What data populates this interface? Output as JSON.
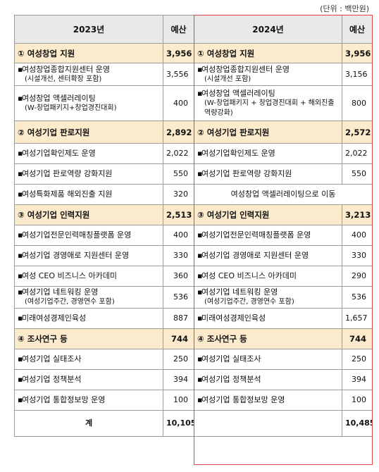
{
  "unit_label": "(단위 : 백만원)",
  "header": {
    "y2023": "2023년",
    "budget": "예산",
    "y2024": "2024년",
    "budget2": "예산"
  },
  "rows": [
    {
      "type": "sec",
      "l": "① 여성창업 지원",
      "lv": "3,956",
      "r": "① 여성창업 지원",
      "rv": "3,956"
    },
    {
      "type": "item",
      "l": "여성창업종합지원센터 운영",
      "ls": "(시설개선, 센터확장 포함)",
      "lv": "3,556",
      "r": "여성창업종합지원센터 운영",
      "rs": "(시설개선 포함)",
      "rv": "3,156"
    },
    {
      "type": "item",
      "l": "여성창업 액셀러레이팅",
      "ls": "(W-창업패키지+창업경진대회)",
      "lv": "400",
      "r": "여성창업 액셀러레이팅",
      "rs": "(W-창업패키지 + 창업경진대회 + 해외진출 역량강화)",
      "rv": "800"
    },
    {
      "type": "sec",
      "l": "② 여성기업 판로지원",
      "lv": "2,892",
      "r": "② 여성기업 판로지원",
      "rv": "2,572"
    },
    {
      "type": "item",
      "l": "여성기업확인제도 운영",
      "lv": "2,022",
      "r": "여성기업확인제도 운영",
      "rv": "2,022"
    },
    {
      "type": "item",
      "l": "여성기업 판로역량 강화지원",
      "lv": "550",
      "r": "여성기업 판로역량 강화지원",
      "rv": "550"
    },
    {
      "type": "moved",
      "l": "여성특화제품 해외진출 지원",
      "lv": "320",
      "r": "여성창업 액셀러레이팅으로 이동"
    },
    {
      "type": "sec",
      "l": "③ 여성기업 인력지원",
      "lv": "2,513",
      "r": "③ 여성기업 인력지원",
      "rv": "3,213"
    },
    {
      "type": "item",
      "l": "여성기업전문인력매칭플랫폼 운영",
      "lv": "400",
      "r": "여성기업전문인력매칭플랫폼 운영",
      "rv": "400"
    },
    {
      "type": "item",
      "l": "여성기업 경영애로 지원센터 운영",
      "lv": "330",
      "r": "여성기업 경영애로 지원센터 운영",
      "rv": "330"
    },
    {
      "type": "item",
      "l": "여성 CEO 비즈니스 아카데미",
      "lv": "360",
      "r": "여성 CEO 비즈니스 아카데미",
      "rv": "290"
    },
    {
      "type": "item",
      "l": "여성기업 네트워킹 운영",
      "ls": "(여성기업주간, 경영연수 포함)",
      "lv": "536",
      "r": "여성기업 네트워킹 운영",
      "rs": "(여성기업주간, 경영연수 포함)",
      "rv": "536"
    },
    {
      "type": "item",
      "l": "미래여성경제인육성",
      "lv": "887",
      "r": "미래여성경제인육성",
      "rv": "1,657"
    },
    {
      "type": "sec",
      "l": "④ 조사연구 등",
      "lv": "744",
      "r": "④ 조사연구 등",
      "rv": "744"
    },
    {
      "type": "item",
      "l": "여성기업 실태조사",
      "lv": "250",
      "r": "여성기업 실태조사",
      "rv": "250"
    },
    {
      "type": "item",
      "l": "여성기업 정책분석",
      "lv": "394",
      "r": "여성기업 정책분석",
      "rv": "394"
    },
    {
      "type": "item",
      "l": "여성기업 통합정보망 운영",
      "lv": "100",
      "r": "여성기업 통합정보망 운영",
      "rv": "100"
    }
  ],
  "total": {
    "label": "계",
    "lv": "10,105",
    "rv": "10,485"
  }
}
